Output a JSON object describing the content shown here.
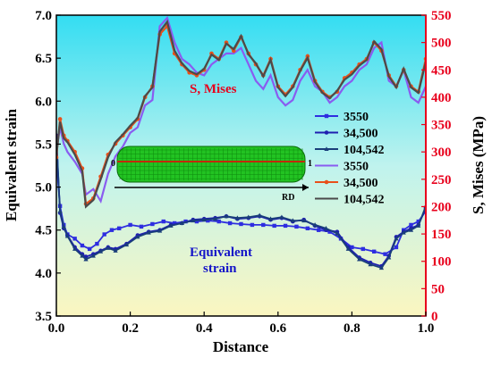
{
  "chart_data": {
    "type": "line",
    "xlabel": "Distance",
    "ylabel_left": "Equivalent strain",
    "ylabel_right": "S, Mises (MPa)",
    "xlim": [
      0.0,
      1.0
    ],
    "ylim_left": [
      3.5,
      7.0
    ],
    "ylim_right": [
      0,
      550
    ],
    "x_ticks": [
      "0.0",
      "0.2",
      "0.4",
      "0.6",
      "0.8",
      "1.0"
    ],
    "y_left_ticks": [
      "3.5",
      "4.0",
      "4.5",
      "5.0",
      "5.5",
      "6.0",
      "6.5",
      "7.0"
    ],
    "y_right_ticks": [
      "0",
      "50",
      "100",
      "150",
      "200",
      "250",
      "300",
      "350",
      "400",
      "450",
      "500",
      "550"
    ],
    "background_gradient": {
      "top": "#33ddf2",
      "mid": "#bff3ee",
      "bottom": "#fbf6c0"
    },
    "legend_position": "right",
    "annotations": {
      "mises": "S, Mises",
      "strain_line1": "Equivalent",
      "strain_line2": "strain"
    },
    "inset": {
      "label_start": "0",
      "label_end": "1",
      "label_direction": "RD",
      "fill": "#22c322",
      "line": "#c22a0a"
    },
    "series": [
      {
        "name": "3550",
        "group": "strain",
        "color": "#2e2ee0",
        "marker": "square",
        "axis": "left",
        "x": [
          0.0,
          0.01,
          0.02,
          0.03,
          0.05,
          0.07,
          0.09,
          0.11,
          0.13,
          0.15,
          0.17,
          0.2,
          0.23,
          0.26,
          0.29,
          0.32,
          0.35,
          0.38,
          0.41,
          0.44,
          0.47,
          0.5,
          0.53,
          0.56,
          0.59,
          0.62,
          0.65,
          0.68,
          0.71,
          0.74,
          0.77,
          0.8,
          0.83,
          0.86,
          0.89,
          0.92,
          0.94,
          0.96,
          0.98,
          1.0
        ],
        "y": [
          5.3,
          4.78,
          4.56,
          4.45,
          4.4,
          4.32,
          4.28,
          4.34,
          4.45,
          4.5,
          4.52,
          4.56,
          4.54,
          4.57,
          4.6,
          4.58,
          4.6,
          4.6,
          4.61,
          4.6,
          4.58,
          4.57,
          4.56,
          4.56,
          4.55,
          4.55,
          4.54,
          4.52,
          4.5,
          4.48,
          4.4,
          4.3,
          4.28,
          4.25,
          4.22,
          4.3,
          4.5,
          4.56,
          4.6,
          4.72
        ]
      },
      {
        "name": "34,500",
        "group": "strain",
        "color": "#1f1fb0",
        "marker": "circle",
        "axis": "left",
        "x": [
          0.0,
          0.01,
          0.02,
          0.03,
          0.05,
          0.07,
          0.08,
          0.1,
          0.12,
          0.14,
          0.16,
          0.19,
          0.22,
          0.25,
          0.28,
          0.31,
          0.34,
          0.37,
          0.4,
          0.43,
          0.46,
          0.49,
          0.52,
          0.55,
          0.58,
          0.61,
          0.64,
          0.67,
          0.7,
          0.73,
          0.76,
          0.79,
          0.82,
          0.85,
          0.88,
          0.9,
          0.92,
          0.94,
          0.96,
          0.98,
          1.0
        ],
        "y": [
          5.6,
          4.7,
          4.52,
          4.44,
          4.3,
          4.22,
          4.19,
          4.22,
          4.26,
          4.3,
          4.28,
          4.34,
          4.44,
          4.48,
          4.5,
          4.56,
          4.58,
          4.62,
          4.63,
          4.64,
          4.66,
          4.63,
          4.64,
          4.66,
          4.62,
          4.64,
          4.6,
          4.62,
          4.55,
          4.5,
          4.48,
          4.3,
          4.18,
          4.12,
          4.08,
          4.2,
          4.42,
          4.48,
          4.52,
          4.56,
          4.75
        ]
      },
      {
        "name": "104,542",
        "group": "strain",
        "color": "#1a3e7a",
        "marker": "triangle",
        "axis": "left",
        "x": [
          0.0,
          0.01,
          0.02,
          0.03,
          0.05,
          0.07,
          0.08,
          0.1,
          0.12,
          0.14,
          0.16,
          0.19,
          0.22,
          0.25,
          0.28,
          0.31,
          0.34,
          0.37,
          0.4,
          0.43,
          0.46,
          0.49,
          0.52,
          0.55,
          0.58,
          0.61,
          0.64,
          0.67,
          0.7,
          0.73,
          0.76,
          0.79,
          0.82,
          0.85,
          0.88,
          0.9,
          0.92,
          0.94,
          0.96,
          0.98,
          1.0
        ],
        "y": [
          5.55,
          4.72,
          4.54,
          4.43,
          4.28,
          4.2,
          4.16,
          4.2,
          4.25,
          4.29,
          4.26,
          4.33,
          4.42,
          4.47,
          4.49,
          4.55,
          4.58,
          4.61,
          4.62,
          4.63,
          4.66,
          4.64,
          4.65,
          4.67,
          4.63,
          4.65,
          4.61,
          4.61,
          4.56,
          4.52,
          4.46,
          4.28,
          4.16,
          4.1,
          4.06,
          4.18,
          4.4,
          4.47,
          4.5,
          4.55,
          4.78
        ]
      },
      {
        "name": "3550",
        "group": "mises",
        "color": "#8a5cf0",
        "marker": "none",
        "axis": "right",
        "x": [
          0.0,
          0.01,
          0.02,
          0.03,
          0.05,
          0.07,
          0.08,
          0.1,
          0.12,
          0.14,
          0.16,
          0.18,
          0.2,
          0.22,
          0.24,
          0.26,
          0.28,
          0.3,
          0.32,
          0.34,
          0.36,
          0.38,
          0.4,
          0.42,
          0.44,
          0.46,
          0.48,
          0.5,
          0.52,
          0.54,
          0.56,
          0.58,
          0.6,
          0.62,
          0.64,
          0.66,
          0.68,
          0.7,
          0.72,
          0.74,
          0.76,
          0.78,
          0.8,
          0.82,
          0.84,
          0.86,
          0.88,
          0.9,
          0.92,
          0.94,
          0.96,
          0.98,
          1.0
        ],
        "y": [
          300,
          345,
          315,
          300,
          282,
          260,
          222,
          232,
          210,
          260,
          292,
          310,
          335,
          345,
          385,
          395,
          530,
          545,
          500,
          470,
          460,
          445,
          440,
          460,
          470,
          480,
          480,
          490,
          460,
          430,
          415,
          440,
          400,
          385,
          395,
          430,
          450,
          420,
          410,
          390,
          400,
          420,
          430,
          450,
          460,
          490,
          500,
          430,
          420,
          450,
          400,
          390,
          420
        ]
      },
      {
        "name": "34,500",
        "group": "mises",
        "color": "#e8501a",
        "marker": "circle",
        "axis": "right",
        "x": [
          0.0,
          0.01,
          0.02,
          0.03,
          0.05,
          0.07,
          0.08,
          0.1,
          0.12,
          0.14,
          0.16,
          0.18,
          0.2,
          0.22,
          0.24,
          0.26,
          0.28,
          0.3,
          0.32,
          0.34,
          0.36,
          0.38,
          0.4,
          0.42,
          0.44,
          0.46,
          0.48,
          0.5,
          0.52,
          0.54,
          0.56,
          0.58,
          0.6,
          0.62,
          0.64,
          0.66,
          0.68,
          0.7,
          0.72,
          0.74,
          0.76,
          0.78,
          0.8,
          0.82,
          0.84,
          0.86,
          0.88,
          0.9,
          0.92,
          0.94,
          0.96,
          0.98,
          1.0
        ],
        "y": [
          290,
          360,
          330,
          320,
          300,
          270,
          205,
          215,
          255,
          295,
          315,
          330,
          345,
          360,
          400,
          420,
          515,
          530,
          480,
          460,
          445,
          440,
          450,
          480,
          470,
          500,
          485,
          510,
          480,
          460,
          440,
          470,
          420,
          405,
          420,
          450,
          475,
          430,
          410,
          400,
          410,
          435,
          445,
          460,
          470,
          500,
          485,
          440,
          420,
          450,
          420,
          410,
          470
        ]
      },
      {
        "name": "104,542",
        "group": "mises",
        "color": "#4a4a4a",
        "marker": "none",
        "axis": "right",
        "x": [
          0.0,
          0.01,
          0.02,
          0.03,
          0.05,
          0.07,
          0.08,
          0.1,
          0.12,
          0.14,
          0.16,
          0.18,
          0.2,
          0.22,
          0.24,
          0.26,
          0.28,
          0.3,
          0.32,
          0.34,
          0.36,
          0.38,
          0.4,
          0.42,
          0.44,
          0.46,
          0.48,
          0.5,
          0.52,
          0.54,
          0.56,
          0.58,
          0.6,
          0.62,
          0.64,
          0.66,
          0.68,
          0.7,
          0.72,
          0.74,
          0.76,
          0.78,
          0.8,
          0.82,
          0.84,
          0.86,
          0.88,
          0.9,
          0.92,
          0.94,
          0.96,
          0.98,
          1.0
        ],
        "y": [
          295,
          355,
          325,
          318,
          295,
          265,
          200,
          212,
          250,
          290,
          318,
          332,
          348,
          362,
          402,
          418,
          520,
          538,
          485,
          462,
          448,
          442,
          452,
          478,
          468,
          498,
          488,
          512,
          478,
          462,
          438,
          468,
          418,
          402,
          418,
          448,
          472,
          428,
          408,
          398,
          412,
          432,
          442,
          458,
          468,
          502,
          488,
          438,
          418,
          452,
          418,
          408,
          465
        ]
      }
    ]
  }
}
